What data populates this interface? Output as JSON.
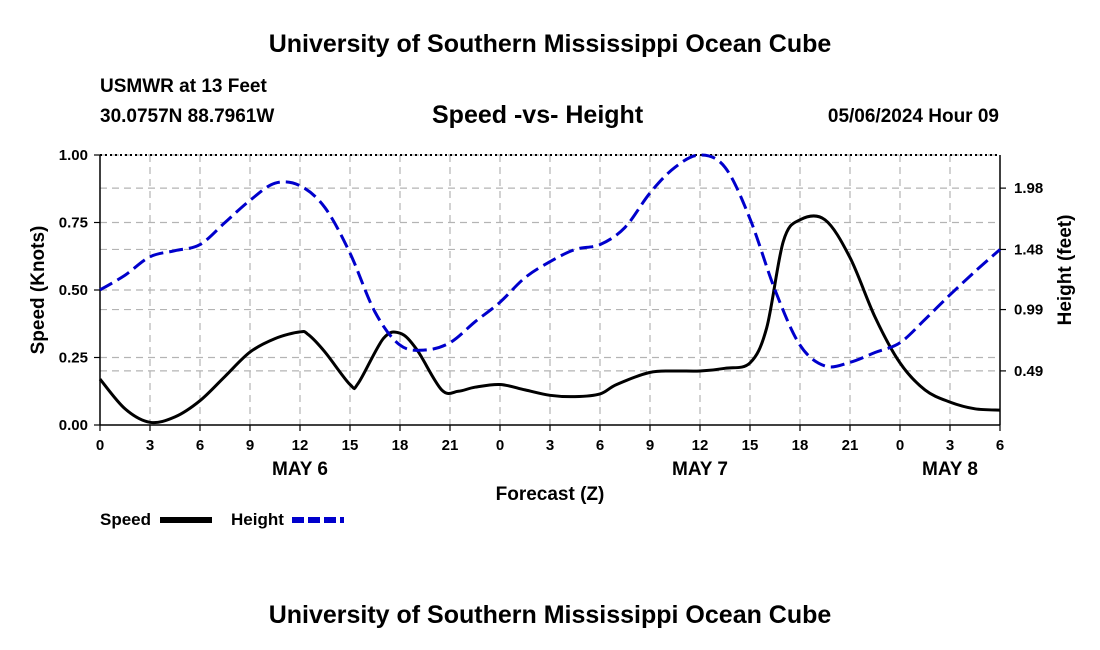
{
  "header": {
    "title_top": "University of Southern Mississippi Ocean Cube",
    "station": "USMWR at 13 Feet",
    "coords": "30.0757N  88.7961W",
    "date": "05/06/2024 Hour 09",
    "title_bottom": "University of Southern Mississippi Ocean Cube"
  },
  "colors": {
    "speed": "#000000",
    "height": "#0000cc",
    "grid": "#b4b4b4"
  },
  "chart_data": {
    "type": "line",
    "title": "Speed -vs- Height",
    "xlabel": "Forecast (Z)",
    "ylabel": "Speed (Knots)",
    "y2label": "Height (feet)",
    "x_hours_range": [
      0,
      54
    ],
    "ylim": [
      0,
      1
    ],
    "y2lim": [
      0.049,
      2.25
    ],
    "x_ticks": [
      0,
      3,
      6,
      9,
      12,
      15,
      18,
      21,
      24,
      27,
      30,
      33,
      36,
      39,
      42,
      45,
      48,
      51,
      54
    ],
    "x_tick_labels": [
      "0",
      "3",
      "6",
      "9",
      "12",
      "15",
      "18",
      "21",
      "0",
      "3",
      "6",
      "9",
      "12",
      "15",
      "18",
      "21",
      "0",
      "3",
      "6"
    ],
    "y_ticks": [
      0,
      0.25,
      0.5,
      0.75,
      1.0
    ],
    "y_tick_labels": [
      "0.00",
      "0.25",
      "0.50",
      "0.75",
      "1.00"
    ],
    "y2_ticks": [
      0.49,
      0.99,
      1.48,
      1.98
    ],
    "y2_tick_labels": [
      "0.49",
      "0.99",
      "1.48",
      "1.98"
    ],
    "day_labels": [
      {
        "hour": 12,
        "label": "MAY 6"
      },
      {
        "hour": 36,
        "label": "MAY 7"
      },
      {
        "hour": 51,
        "label": "MAY 8"
      }
    ],
    "series": [
      {
        "name": "Speed",
        "axis": "left",
        "x": [
          0,
          1.5,
          3,
          4.5,
          6,
          7.5,
          9,
          10.5,
          12,
          12.5,
          13.5,
          15,
          15.5,
          17,
          18,
          19,
          20.5,
          21.5,
          22.5,
          24,
          25.5,
          27,
          28.5,
          30,
          31,
          33,
          34.5,
          36,
          37.5,
          39,
          40,
          41,
          42,
          43.5,
          45,
          46.5,
          48,
          49.5,
          51,
          52.5,
          54
        ],
        "values": [
          0.17,
          0.06,
          0.01,
          0.03,
          0.09,
          0.18,
          0.27,
          0.32,
          0.345,
          0.335,
          0.27,
          0.15,
          0.155,
          0.32,
          0.34,
          0.28,
          0.13,
          0.125,
          0.14,
          0.15,
          0.13,
          0.11,
          0.105,
          0.115,
          0.15,
          0.195,
          0.2,
          0.2,
          0.21,
          0.23,
          0.36,
          0.68,
          0.76,
          0.76,
          0.62,
          0.4,
          0.23,
          0.13,
          0.085,
          0.06,
          0.055
        ]
      },
      {
        "name": "Height",
        "axis": "right",
        "x": [
          0,
          1.5,
          3,
          4.5,
          6,
          7.5,
          9,
          10.5,
          12,
          13.5,
          15,
          16.5,
          18,
          19.5,
          21,
          22.5,
          24,
          25.5,
          27,
          28.5,
          30,
          31.5,
          33,
          34.5,
          36,
          37.5,
          39,
          40.5,
          42,
          43.5,
          45,
          46.5,
          48,
          49.5,
          51,
          52.5,
          54
        ],
        "values": [
          1.15,
          1.27,
          1.42,
          1.47,
          1.52,
          1.7,
          1.88,
          2.02,
          2.0,
          1.82,
          1.45,
          0.97,
          0.7,
          0.66,
          0.72,
          0.89,
          1.05,
          1.25,
          1.38,
          1.48,
          1.52,
          1.66,
          1.94,
          2.15,
          2.25,
          2.15,
          1.73,
          1.15,
          0.7,
          0.53,
          0.56,
          0.64,
          0.72,
          0.91,
          1.11,
          1.3,
          1.48
        ]
      }
    ],
    "legend": [
      {
        "label": "Speed",
        "series": "Speed"
      },
      {
        "label": "Height",
        "series": "Height"
      }
    ]
  }
}
